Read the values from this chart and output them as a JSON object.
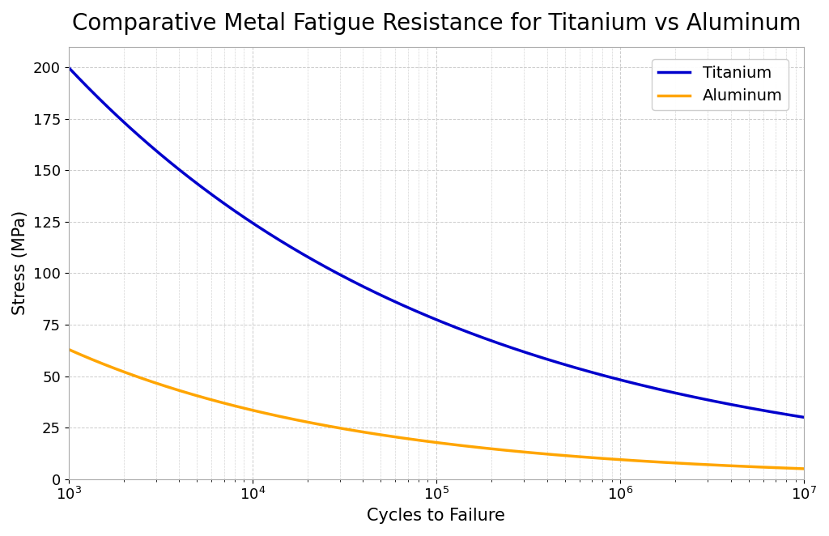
{
  "title": "Comparative Metal Fatigue Resistance for Titanium vs Aluminum",
  "xlabel": "Cycles to Failure",
  "ylabel": "Stress (MPa)",
  "titanium_color": "#0000cc",
  "aluminum_color": "#FFA500",
  "titanium_label": "Titanium",
  "aluminum_label": "Aluminum",
  "x_min": 1000,
  "x_max": 10000000,
  "y_min": 0,
  "y_max": 210,
  "titanium_S0": 200.0,
  "titanium_N0": 1000,
  "titanium_S1": 30.0,
  "titanium_N1": 10000000,
  "aluminum_S0": 63.0,
  "aluminum_N0": 1000,
  "aluminum_S1": 5.0,
  "aluminum_N1": 10000000,
  "line_width": 2.5,
  "title_fontsize": 20,
  "label_fontsize": 15,
  "tick_fontsize": 13,
  "legend_fontsize": 14,
  "background_color": "#ffffff",
  "grid_color": "#cccccc",
  "yticks": [
    0,
    25,
    50,
    75,
    100,
    125,
    150,
    175,
    200
  ]
}
